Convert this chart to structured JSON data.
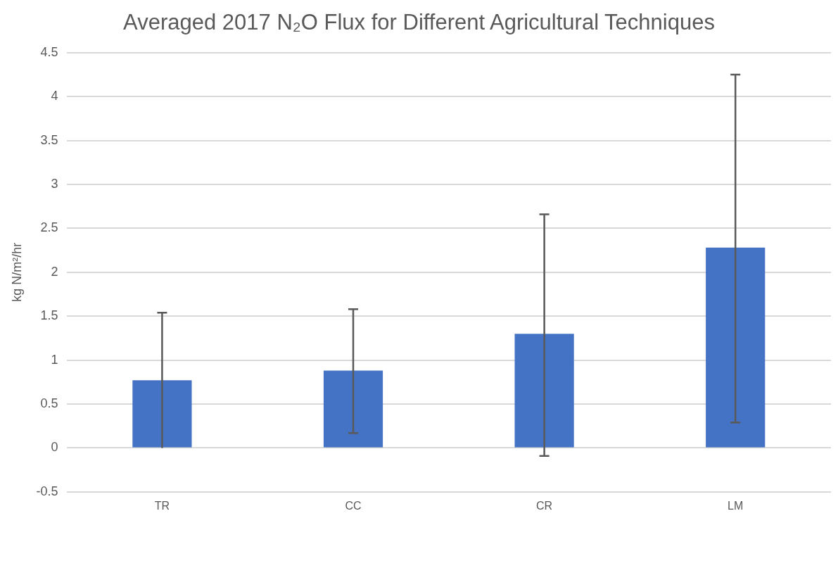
{
  "chart_data": {
    "type": "bar",
    "title": "Averaged 2017 N₂O Flux for Different Agricultural Techniques",
    "ylabel": "kg N/m²/hr",
    "categories": [
      "TR",
      "CC",
      "CR",
      "LM"
    ],
    "values": [
      0.77,
      0.88,
      1.3,
      2.28
    ],
    "errors": [
      [
        0,
        1.54
      ],
      [
        0.17,
        1.58
      ],
      [
        -0.09,
        2.66
      ],
      [
        0.29,
        4.25
      ]
    ],
    "color": "#4472c4",
    "ylim": [
      -0.5,
      4.5
    ],
    "yticks": [
      -0.5,
      0,
      0.5,
      1,
      1.5,
      2,
      2.5,
      3,
      3.5,
      4,
      4.5
    ],
    "grid": "y",
    "legend": false
  }
}
